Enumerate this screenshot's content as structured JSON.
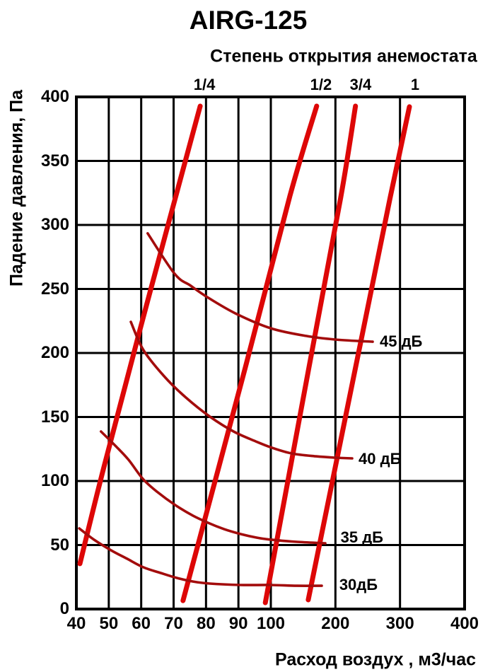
{
  "title": "AIRG-125",
  "top_axis": {
    "title": "Степень открытия анемостата",
    "labels": [
      {
        "text": "1/4",
        "flow": 79.5
      },
      {
        "text": "1/2",
        "flow": 177.7
      },
      {
        "text": "3/4",
        "flow": 239.0
      },
      {
        "text": "1",
        "flow": 323.4
      }
    ]
  },
  "colors": {
    "opening_line": "#dd0707",
    "noise_curve": "#a30c0c",
    "grid": "#000000",
    "frame": "#000000",
    "text": "#000000",
    "background": "#ffffff"
  },
  "chart_data": {
    "type": "line",
    "title": "AIRG-125",
    "xlabel": "Расход воздух , м3/час",
    "ylabel": "Падение давления, Па",
    "x_ticks": [
      40,
      50,
      60,
      70,
      80,
      90,
      100,
      200,
      300,
      400
    ],
    "y_ticks": [
      0,
      50,
      100,
      150,
      200,
      250,
      300,
      350,
      400
    ],
    "xlim": [
      40,
      400
    ],
    "ylim": [
      0,
      400
    ],
    "x_scale": "piecewise-linear: segment 40-100 and segment 100-400 each span half the axis",
    "grid": true,
    "series": [
      {
        "name": "1/4",
        "role": "opening-degree",
        "style": "thick",
        "points": [
          [
            41.1,
            35.4
          ],
          [
            48.5,
            111.0
          ],
          [
            62.3,
            243.6
          ],
          [
            78.2,
            392.8
          ]
        ]
      },
      {
        "name": "1/2",
        "role": "opening-degree",
        "style": "thick",
        "points": [
          [
            72.9,
            6.6
          ],
          [
            92.1,
            188.4
          ],
          [
            129.6,
            322.7
          ],
          [
            171.0,
            392.8
          ]
        ]
      },
      {
        "name": "3/4",
        "role": "opening-degree",
        "style": "thick",
        "points": [
          [
            98.3,
            5.0
          ],
          [
            158.9,
            188.4
          ],
          [
            208.1,
            321.0
          ],
          [
            231.1,
            392.8
          ]
        ]
      },
      {
        "name": "1",
        "role": "opening-degree",
        "style": "thick",
        "points": [
          [
            157.9,
            7.2
          ],
          [
            231.1,
            188.4
          ],
          [
            284.6,
            321.0
          ],
          [
            314.6,
            392.3
          ]
        ]
      },
      {
        "name": "45 дБ",
        "role": "noise-level",
        "style": "thin",
        "label": "45 дБ",
        "label_anchor": {
          "flow": 268.6,
          "pa": 209.0
        },
        "points": [
          [
            62.0,
            293.4
          ],
          [
            70.3,
            261.9
          ],
          [
            75.3,
            252.5
          ],
          [
            80.4,
            243.6
          ],
          [
            89.1,
            230.9
          ],
          [
            100.0,
            219.3
          ],
          [
            154.7,
            213.3
          ],
          [
            199.6,
            210.5
          ],
          [
            257.7,
            208.8
          ]
        ]
      },
      {
        "name": "40 дБ",
        "role": "noise-level",
        "style": "thin",
        "label": "40 дБ",
        "label_anchor": {
          "flow": 235.8,
          "pa": 117.0
        },
        "points": [
          [
            56.8,
            224.3
          ],
          [
            60.7,
            202.2
          ],
          [
            67.3,
            181.2
          ],
          [
            73.8,
            165.2
          ],
          [
            81.2,
            150.3
          ],
          [
            88.5,
            138.7
          ],
          [
            95.4,
            130.9
          ],
          [
            102.2,
            125.9
          ],
          [
            132.8,
            121.5
          ],
          [
            170.1,
            119.3
          ],
          [
            200.7,
            118.2
          ],
          [
            225.9,
            117.7
          ]
        ]
      },
      {
        "name": "35 дБ",
        "role": "noise-level",
        "style": "thin",
        "label": "35 дБ",
        "label_anchor": {
          "flow": 208.0,
          "pa": 56.0
        },
        "points": [
          [
            47.6,
            138.7
          ],
          [
            52.0,
            127.6
          ],
          [
            56.1,
            116.6
          ],
          [
            60.5,
            101.7
          ],
          [
            65.1,
            91.2
          ],
          [
            70.5,
            81.2
          ],
          [
            76.0,
            72.9
          ],
          [
            80.6,
            67.4
          ],
          [
            85.6,
            62.4
          ],
          [
            90.6,
            58.6
          ],
          [
            95.6,
            55.8
          ],
          [
            102.2,
            54.1
          ],
          [
            140.5,
            52.5
          ],
          [
            184.3,
            51.4
          ]
        ]
      },
      {
        "name": "30дБ",
        "role": "noise-level",
        "style": "thin",
        "label": "30дБ",
        "label_anchor": {
          "flow": 206.0,
          "pa": 19.0
        },
        "points": [
          [
            40.9,
            63.0
          ],
          [
            45.5,
            54.1
          ],
          [
            50.7,
            45.9
          ],
          [
            55.7,
            39.2
          ],
          [
            60.7,
            32.6
          ],
          [
            66.0,
            28.2
          ],
          [
            71.0,
            24.3
          ],
          [
            76.0,
            21.5
          ],
          [
            81.2,
            19.9
          ],
          [
            90.6,
            18.8
          ],
          [
            100.0,
            18.8
          ],
          [
            140.5,
            18.2
          ],
          [
            178.8,
            18.2
          ]
        ]
      }
    ]
  }
}
